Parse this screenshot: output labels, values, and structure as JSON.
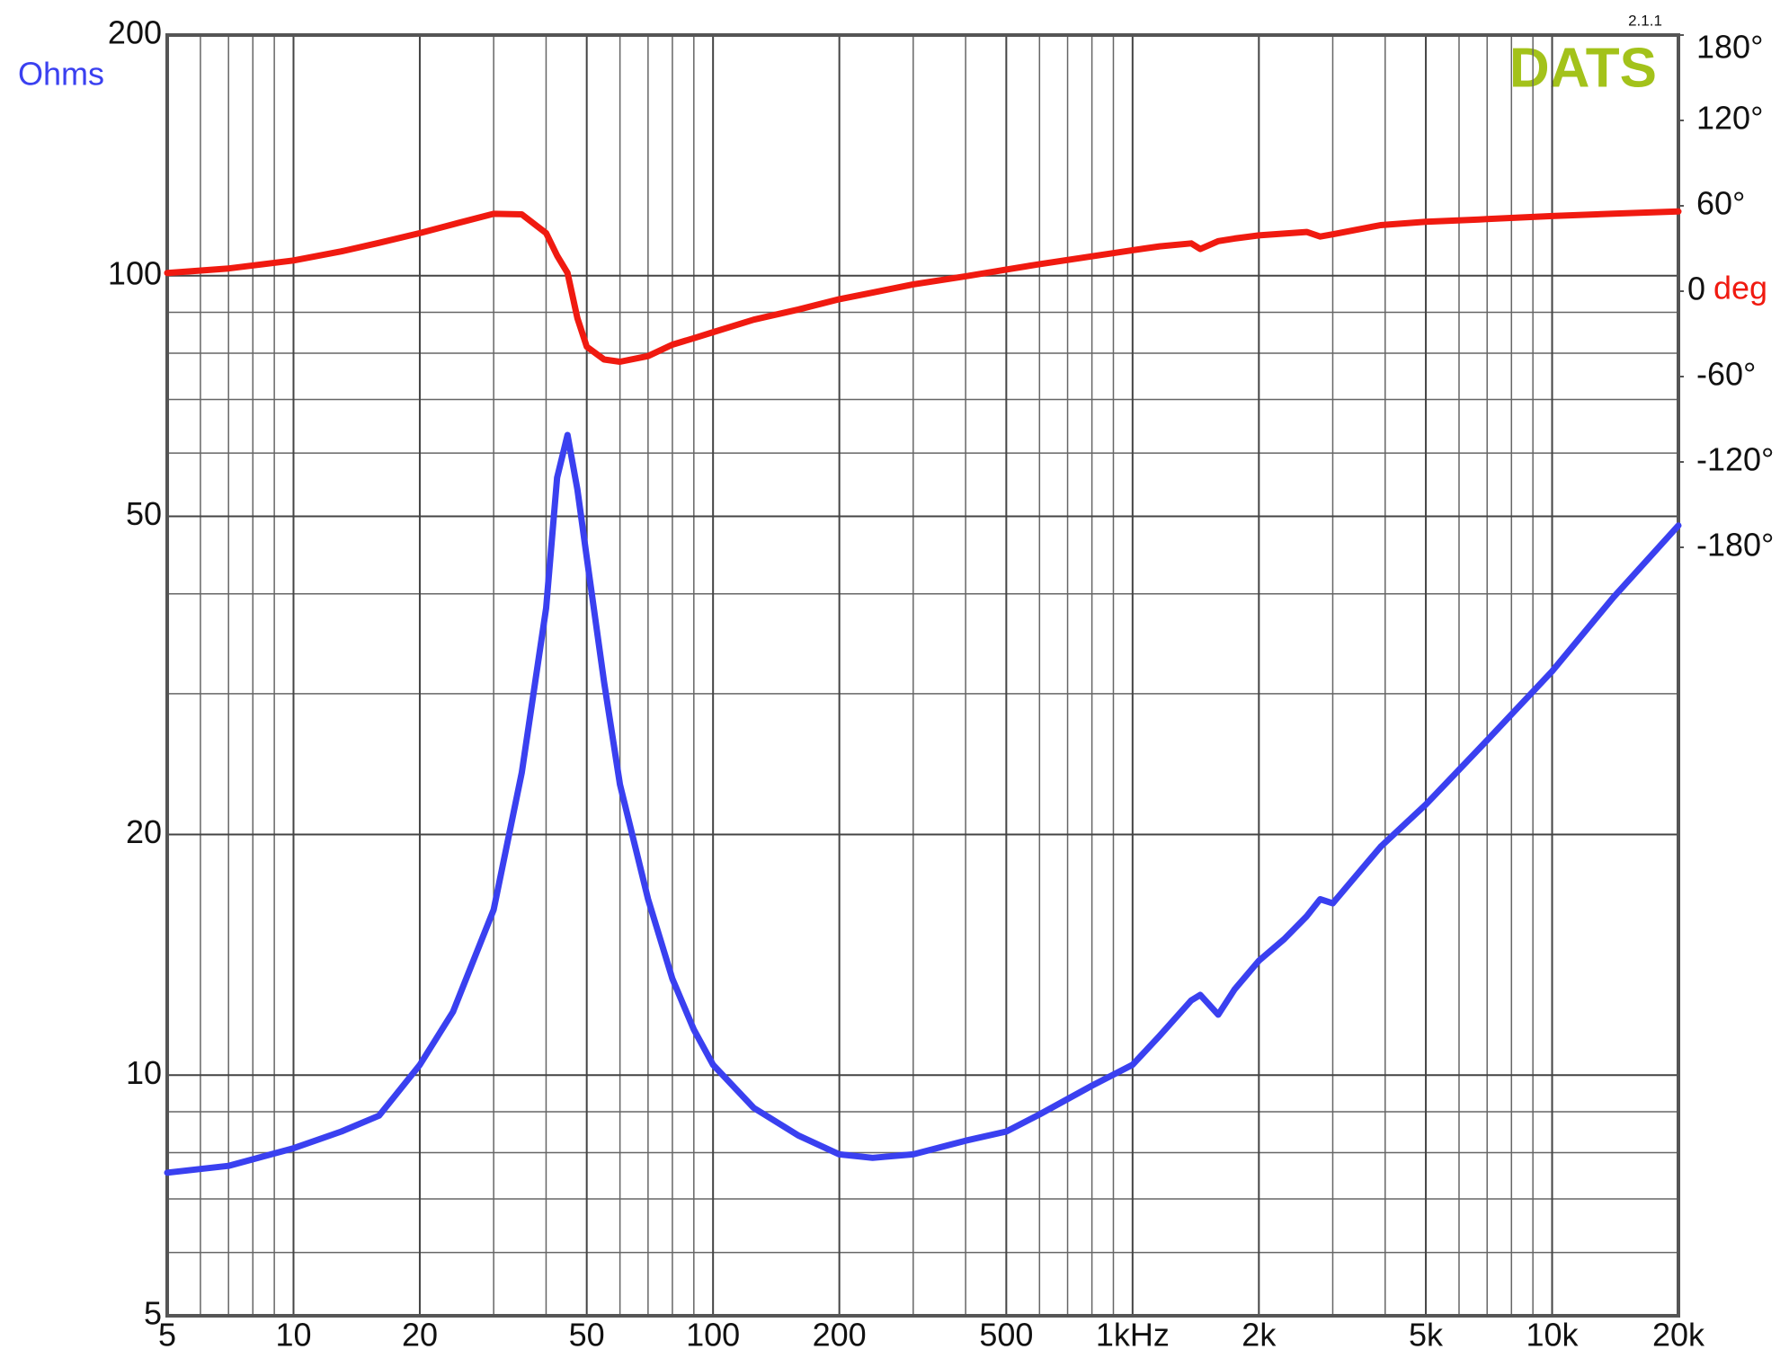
{
  "chart_data": {
    "type": "line",
    "y_label": "Ohms",
    "y2_label": "deg",
    "annotations": [
      "DATS",
      "2.1.1"
    ],
    "log_x": true,
    "log_y": true,
    "grid": true,
    "x": [
      5,
      7,
      10,
      13,
      16,
      20,
      24,
      30,
      35,
      40,
      42.5,
      45,
      47.5,
      50,
      55,
      60,
      70,
      80,
      90,
      100,
      125,
      160,
      200,
      240,
      300,
      400,
      500,
      600,
      800,
      1000,
      1160,
      1380,
      1450,
      1600,
      1750,
      2000,
      2300,
      2600,
      2800,
      3000,
      3900,
      5000,
      6700,
      10000,
      14000,
      20000
    ],
    "series": [
      {
        "color": "#3a40f0",
        "values": [
          7.55,
          7.7,
          8.1,
          8.5,
          8.9,
          10.3,
          12,
          16.1,
          23.9,
          38.4,
          55.9,
          63.2,
          54,
          44.4,
          31,
          23.1,
          16.6,
          13.2,
          11.4,
          10.3,
          9.1,
          8.4,
          7.96,
          7.88,
          7.96,
          8.28,
          8.5,
          8.93,
          9.7,
          10.3,
          11.2,
          12.4,
          12.6,
          11.9,
          12.8,
          13.9,
          14.8,
          15.8,
          16.6,
          16.4,
          19.3,
          21.8,
          25.6,
          32,
          39.6,
          48.7
        ]
      },
      {
        "color": "#f01a10",
        "axis": "y2",
        "values": [
          12.8,
          16,
          21.6,
          28,
          34,
          40.8,
          47,
          54.4,
          54,
          40.8,
          25,
          12.8,
          -19,
          -39,
          -48,
          -49.6,
          -45.6,
          -37.6,
          -33,
          -28.8,
          -20,
          -12.8,
          -5.6,
          -1,
          4.8,
          10.5,
          15.2,
          19,
          24.5,
          28.8,
          31.5,
          33.6,
          29.6,
          35.2,
          37,
          39.2,
          40.5,
          41.6,
          38.4,
          40,
          46.4,
          48.8,
          50.4,
          52.8,
          54.5,
          56
        ]
      }
    ],
    "xlim": [
      5,
      20000
    ],
    "xticks": [
      5,
      10,
      20,
      50,
      100,
      200,
      500,
      {
        "value": 1000,
        "label": "1kHz"
      },
      {
        "value": 2000,
        "label": "2k"
      },
      {
        "value": 5000,
        "label": "5k"
      },
      {
        "value": 10000,
        "label": "10k"
      },
      {
        "value": 20000,
        "label": "20k"
      }
    ],
    "x_minor_grid": [
      6,
      7,
      8,
      9,
      30,
      40,
      60,
      70,
      80,
      90,
      300,
      400,
      600,
      700,
      800,
      900,
      3000,
      4000,
      6000,
      7000,
      8000,
      9000
    ],
    "ylim": [
      5,
      200
    ],
    "yticks": [
      5,
      10,
      20,
      50,
      100,
      200
    ],
    "y_minor_grid": [
      6,
      7,
      8,
      9,
      30,
      40,
      60,
      70,
      80,
      90
    ],
    "y2lim": [
      -720,
      180
    ],
    "y2ticks": [
      {
        "value": 180,
        "label": "180°"
      },
      {
        "value": 120,
        "label": "120°"
      },
      {
        "value": 60,
        "label": "60°"
      },
      {
        "value": 0,
        "label": "0"
      },
      {
        "value": -60,
        "label": "-60°"
      },
      {
        "value": -120,
        "label": "-120°"
      },
      {
        "value": -180,
        "label": "-180°"
      }
    ]
  }
}
